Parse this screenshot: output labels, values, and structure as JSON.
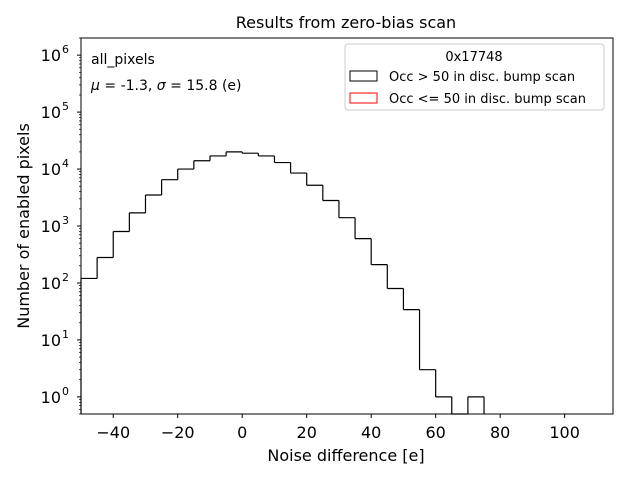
{
  "chart_data": {
    "type": "histogram",
    "title": "Results from zero-bias scan",
    "xlabel": "Noise difference [e]",
    "ylabel": "Number of enabled pixels",
    "yscale": "log",
    "xlim": [
      -50,
      115
    ],
    "ylim": [
      0.5,
      2000000
    ],
    "xticks": [
      -40,
      -20,
      0,
      20,
      40,
      60,
      80,
      100
    ],
    "xtick_labels": [
      "−40",
      "−20",
      "0",
      "20",
      "40",
      "60",
      "80",
      "100"
    ],
    "yticks": [
      {
        "value": 1,
        "base": "10",
        "exp": "0"
      },
      {
        "value": 10,
        "base": "10",
        "exp": "1"
      },
      {
        "value": 100,
        "base": "10",
        "exp": "2"
      },
      {
        "value": 1000,
        "base": "10",
        "exp": "3"
      },
      {
        "value": 10000,
        "base": "10",
        "exp": "4"
      },
      {
        "value": 100000,
        "base": "10",
        "exp": "5"
      },
      {
        "value": 1000000,
        "base": "10",
        "exp": "6"
      }
    ],
    "bin_edges": [
      -50,
      -45,
      -40,
      -35,
      -30,
      -25,
      -20,
      -15,
      -10,
      -5,
      0,
      5,
      10,
      15,
      20,
      25,
      30,
      35,
      40,
      45,
      50,
      55,
      60,
      65,
      70,
      75
    ],
    "series": [
      {
        "name": "Occ > 50 in disc. bump scan",
        "color": "#000000",
        "counts": [
          120,
          280,
          800,
          1700,
          3500,
          6500,
          10000,
          14000,
          17000,
          20000,
          19000,
          17000,
          13000,
          8500,
          5200,
          2800,
          1400,
          600,
          210,
          80,
          34,
          3,
          1,
          0,
          1
        ]
      },
      {
        "name": "Occ <= 50 in disc. bump scan",
        "color": "#ff0000",
        "counts": []
      }
    ],
    "annotations": {
      "dataset": "all_pixels",
      "stats_mu": "-1.3",
      "stats_sigma": "15.8",
      "stats_unit": "(e)"
    },
    "legend": {
      "title": "0x17748",
      "location": "top-right"
    }
  }
}
